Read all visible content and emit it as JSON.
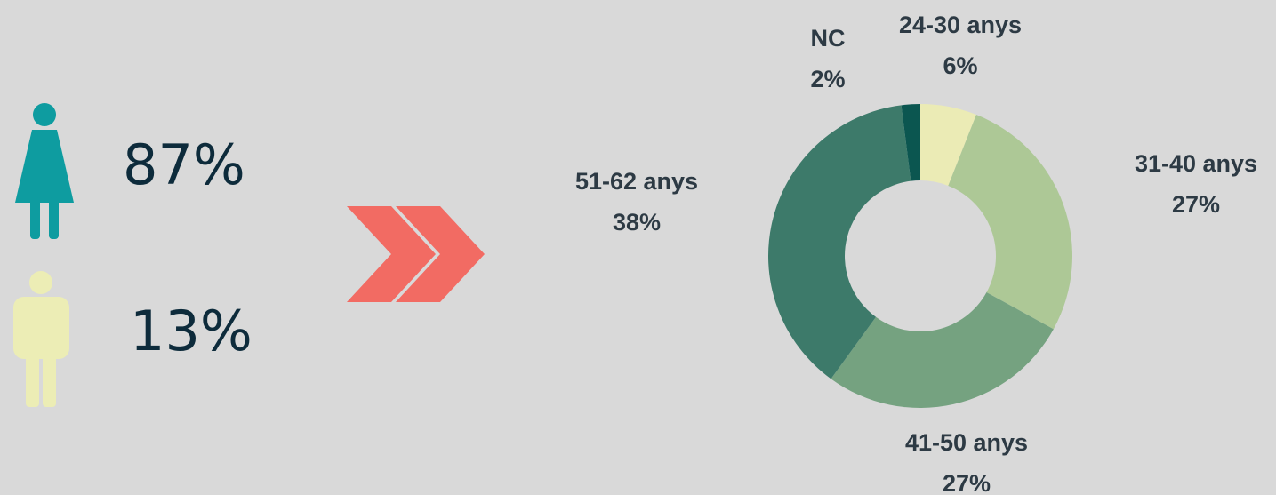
{
  "gender": {
    "female": "87%",
    "male": "13%"
  },
  "chart_data": {
    "type": "pie",
    "donut": true,
    "categories": [
      "24-30 anys",
      "31-40 anys",
      "41-50 anys",
      "51-62 anys",
      "NC"
    ],
    "values": [
      6,
      27,
      27,
      38,
      2
    ],
    "value_labels": [
      "6%",
      "27%",
      "27%",
      "38%",
      "2%"
    ],
    "colors": [
      "#ebebb5",
      "#adc896",
      "#75a280",
      "#3d7a6a",
      "#0b5650"
    ]
  }
}
